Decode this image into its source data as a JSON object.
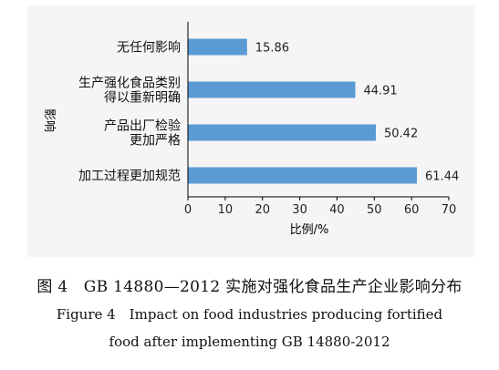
{
  "chart_data": {
    "type": "bar",
    "orientation": "horizontal",
    "categories": [
      [
        "无任何影响"
      ],
      [
        "生产强化食品类别",
        "得以重新明确"
      ],
      [
        "产品出厂检验",
        "更加严格"
      ],
      [
        "加工过程更加规范"
      ]
    ],
    "values": [
      15.86,
      44.91,
      50.42,
      61.44
    ],
    "value_labels": [
      "15.86",
      "44.91",
      "50.42",
      "61.44"
    ],
    "ylabel": "影响",
    "xlabel": "比例/%",
    "xlim": [
      0,
      70
    ],
    "xticks": [
      "0",
      "10",
      "20",
      "30",
      "40",
      "50",
      "60",
      "70"
    ],
    "grid": false,
    "bar_color": "#5b9bd5"
  },
  "captions": {
    "zh": "图 4　GB 14880—2012 实施对强化食品生产企业影响分布",
    "en_line1": "Figure 4　Impact on food industries producing fortified",
    "en_line2": "food after implementing GB 14880-2012"
  }
}
